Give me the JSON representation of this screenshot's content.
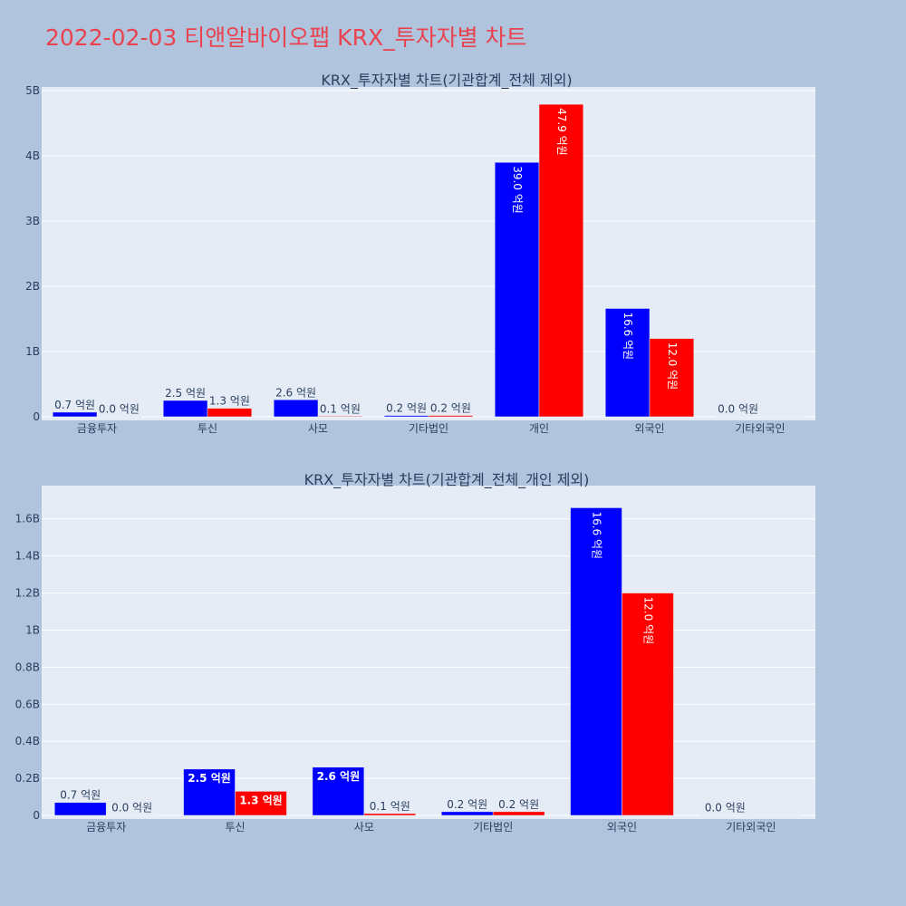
{
  "page_title": "2022-02-03 티앤알바이오팹 KRX_투자자별 차트",
  "colors": {
    "background": "#b0c4de",
    "plot_bg": "#e5ecf6",
    "title": "#e8434f",
    "series_a": "#0000ff",
    "series_b": "#ff0000",
    "text": "#2a3f5f"
  },
  "chart_data": [
    {
      "type": "bar",
      "title": "KRX_투자자별 차트(기관합계_전체 제외)",
      "categories": [
        "금융투자",
        "투신",
        "사모",
        "기타법인",
        "개인",
        "외국인",
        "기타외국인"
      ],
      "yticks": [
        "0",
        "1B",
        "2B",
        "3B",
        "4B",
        "5B"
      ],
      "ylim": [
        0,
        5000000000
      ],
      "series": [
        {
          "color": "#0000ff",
          "values": [
            70000000,
            250000000,
            260000000,
            20000000,
            3900000000,
            1660000000,
            0
          ],
          "labels": [
            "0.7 억원",
            "2.5 억원",
            "2.6 억원",
            "0.2 억원",
            "39.0 억원",
            "16.6 억원",
            "0.0 억원"
          ]
        },
        {
          "color": "#ff0000",
          "values": [
            0,
            130000000,
            10000000,
            20000000,
            4790000000,
            1200000000,
            0
          ],
          "labels": [
            "0.0 억원",
            "1.3 억원",
            "0.1 억원",
            "0.2 억원",
            "47.9 억원",
            "12.0 억원",
            ""
          ]
        }
      ]
    },
    {
      "type": "bar",
      "title": "KRX_투자자별 차트(기관합계_전체_개인 제외)",
      "categories": [
        "금융투자",
        "투신",
        "사모",
        "기타법인",
        "외국인",
        "기타외국인"
      ],
      "yticks": [
        "0",
        "0.2B",
        "0.4B",
        "0.6B",
        "0.8B",
        "1B",
        "1.2B",
        "1.4B",
        "1.6B"
      ],
      "ylim": [
        0,
        1760000000
      ],
      "series": [
        {
          "color": "#0000ff",
          "values": [
            70000000,
            250000000,
            260000000,
            20000000,
            1660000000,
            0
          ],
          "labels": [
            "0.7 억원",
            "2.5 억원",
            "2.6 억원",
            "0.2 억원",
            "16.6 억원",
            "0.0 억원"
          ]
        },
        {
          "color": "#ff0000",
          "values": [
            0,
            130000000,
            10000000,
            20000000,
            1200000000,
            0
          ],
          "labels": [
            "0.0 억원",
            "1.3 억원",
            "0.1 억원",
            "0.2 억원",
            "12.0 억원",
            ""
          ]
        }
      ]
    }
  ]
}
